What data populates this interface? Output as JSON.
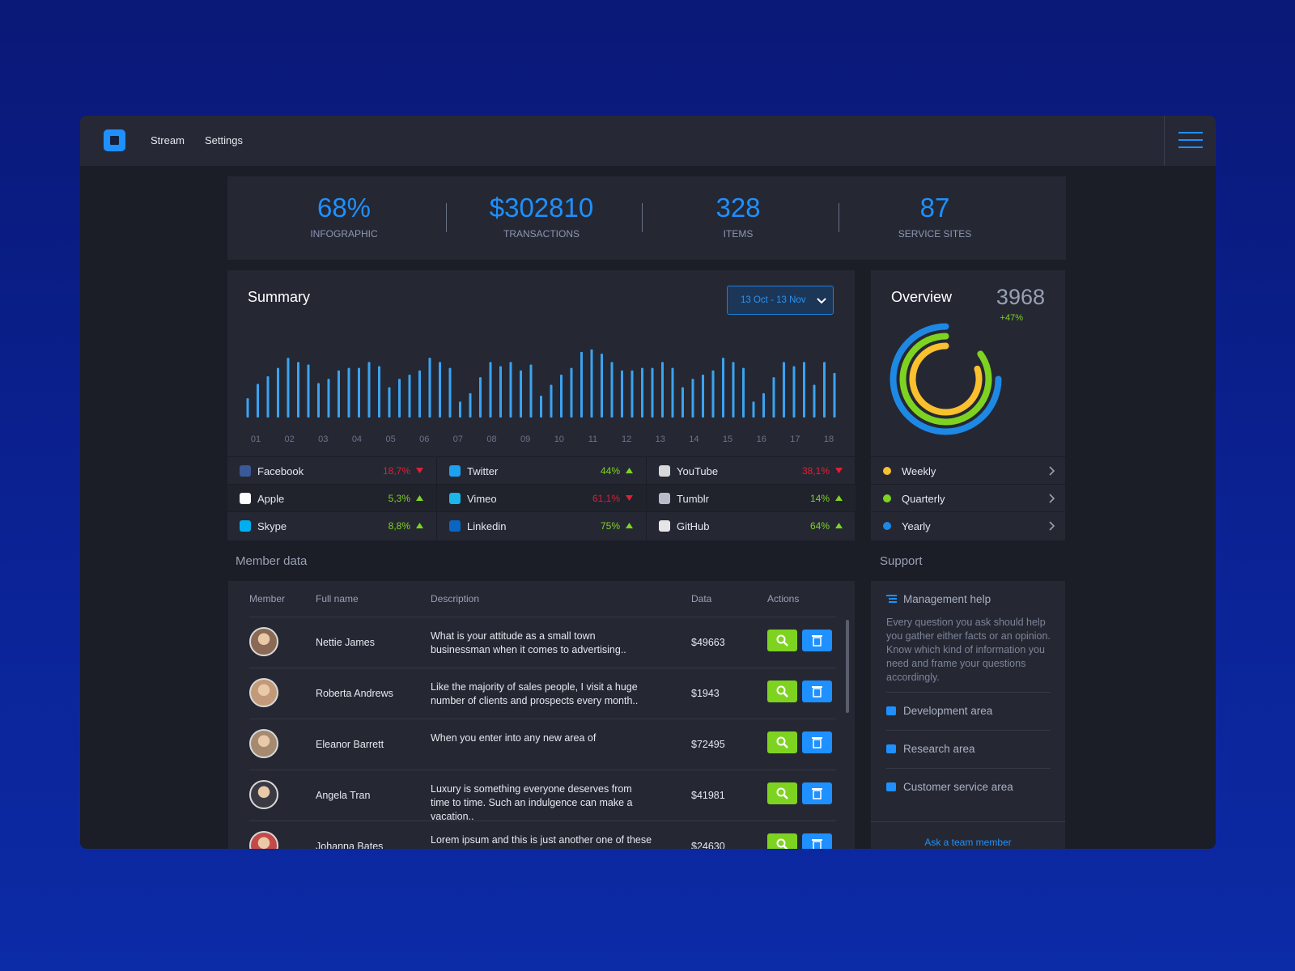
{
  "nav": {
    "items": [
      "Stream",
      "Settings"
    ]
  },
  "stats": [
    {
      "value": "68%",
      "label": "INFOGRAPHIC"
    },
    {
      "value": "$302810",
      "label": "TRANSACTIONS"
    },
    {
      "value": "328",
      "label": "ITEMS"
    },
    {
      "value": "87",
      "label": "SERVICE SITES"
    }
  ],
  "chart_data": [
    {
      "type": "bar",
      "title": "Summary",
      "date_range": "13 Oct - 13 Nov",
      "color": "#3aa3f2",
      "x_labels": [
        "01",
        "02",
        "03",
        "04",
        "05",
        "06",
        "07",
        "08",
        "09",
        "10",
        "11",
        "12",
        "13",
        "14",
        "15",
        "16",
        "17",
        "18"
      ],
      "values": [
        23,
        40,
        49,
        59,
        71,
        66,
        63,
        41,
        46,
        56,
        59,
        59,
        66,
        61,
        36,
        46,
        51,
        56,
        71,
        66,
        59,
        19,
        29,
        48,
        66,
        61,
        66,
        56,
        63,
        26,
        39,
        51,
        59,
        78,
        81,
        76,
        66,
        56,
        56,
        59,
        59,
        66,
        59,
        36,
        46,
        51,
        56,
        71,
        66,
        59,
        19,
        29,
        48,
        66,
        61,
        66,
        39,
        66,
        53
      ]
    },
    {
      "type": "donut",
      "title": "Overview",
      "total": "3968",
      "change": "+47%",
      "categories": [
        "Weekly",
        "Quarterly",
        "Yearly"
      ],
      "colors": [
        "#fbc02d",
        "#7ed321",
        "#1e88e5"
      ],
      "values": [
        80,
        85,
        75
      ]
    }
  ],
  "social": [
    {
      "name": "Facebook",
      "change": "18,7%",
      "trend": "down"
    },
    {
      "name": "Twitter",
      "change": "44%",
      "trend": "up"
    },
    {
      "name": "YouTube",
      "change": "38,1%",
      "trend": "down"
    },
    {
      "name": "Apple",
      "change": "5,3%",
      "trend": "up"
    },
    {
      "name": "Vimeo",
      "change": "61,1%",
      "trend": "down"
    },
    {
      "name": "Tumblr",
      "change": "14%",
      "trend": "up"
    },
    {
      "name": "Skype",
      "change": "8,8%",
      "trend": "up"
    },
    {
      "name": "Linkedin",
      "change": "75%",
      "trend": "up"
    },
    {
      "name": "GitHub",
      "change": "64%",
      "trend": "up"
    }
  ],
  "members": {
    "title": "Member data",
    "header": [
      "Member",
      "Full name",
      "Description",
      "Data",
      "Actions"
    ],
    "rows": [
      {
        "name": "Nettie James",
        "description": "What is your attitude as a small town businessman when it comes to advertising..",
        "data": "$49663"
      },
      {
        "name": "Roberta Andrews",
        "description": "Like the majority of sales people, I visit a huge number of clients and prospects every month..",
        "data": "$1943"
      },
      {
        "name": "Eleanor Barrett",
        "description": "When you enter into any new area of",
        "data": "$72495"
      },
      {
        "name": "Angela Tran",
        "description": "Luxury is something everyone deserves from time to time. Such an indulgence can make a vacation..",
        "data": "$41981"
      },
      {
        "name": "Johanna Bates",
        "description": "Lorem ipsum and this is just another one of these",
        "data": "$24630"
      }
    ]
  },
  "support": {
    "title": "Support",
    "heading": "Management help",
    "text": "Every question you ask should help you gather either facts or an opinion. Know which kind of information you need and frame your questions accordingly.",
    "links": [
      "Development area",
      "Research area",
      "Customer service area"
    ],
    "footer": "Ask a team member"
  }
}
